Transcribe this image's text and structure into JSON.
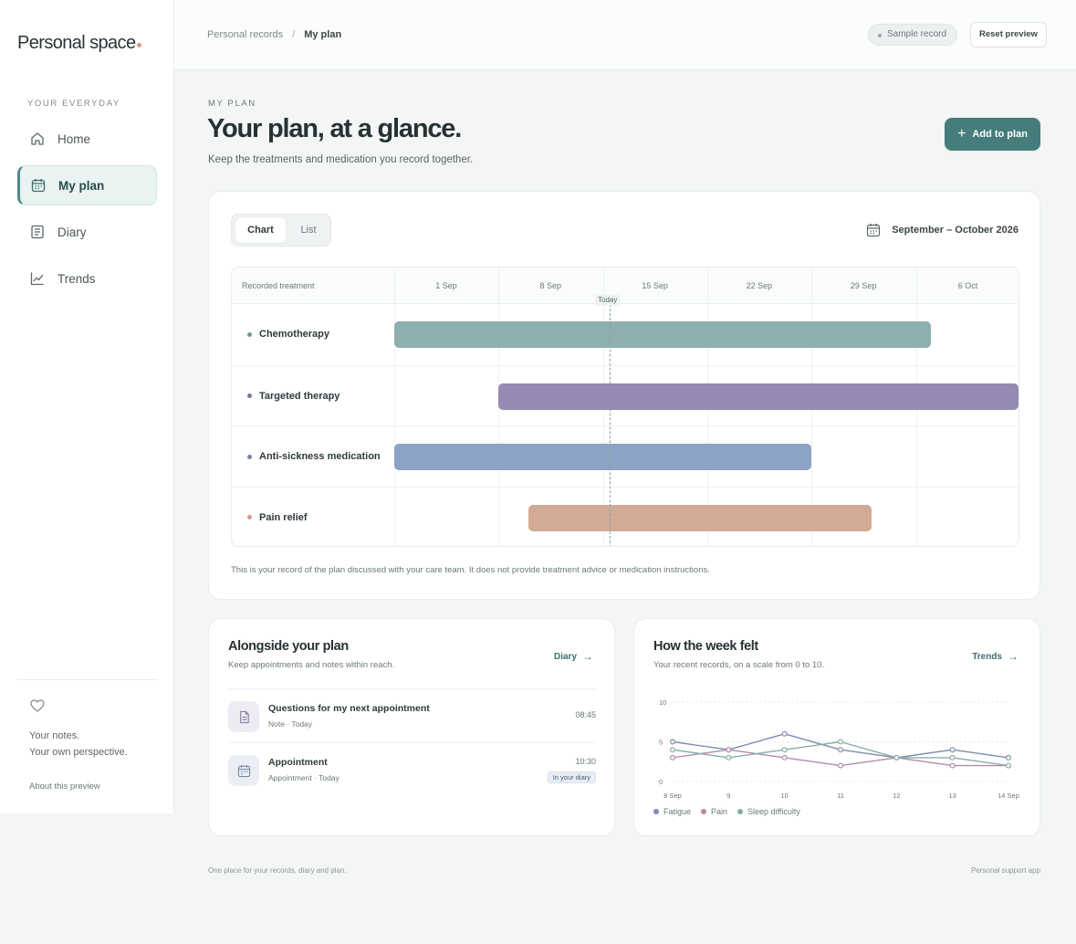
{
  "brand": {
    "name": "Personal space"
  },
  "sidebar": {
    "section_label": "YOUR EVERYDAY",
    "items": [
      {
        "label": "Home",
        "icon": "home-icon",
        "active": false
      },
      {
        "label": "My plan",
        "icon": "calendar-icon",
        "active": true
      },
      {
        "label": "Diary",
        "icon": "notebook-icon",
        "active": false
      },
      {
        "label": "Trends",
        "icon": "chart-line-icon",
        "active": false
      }
    ],
    "notes_line1": "Your notes.",
    "notes_line2": "Your own perspective.",
    "about_link": "About this preview"
  },
  "topbar": {
    "breadcrumb_root": "Personal records",
    "breadcrumb_sep": "/",
    "breadcrumb_current": "My plan",
    "sample_badge": "Sample record",
    "reset_button": "Reset preview"
  },
  "header": {
    "eyebrow": "MY PLAN",
    "title": "Your plan, at a glance.",
    "subtitle": "Keep the treatments and medication you record together.",
    "add_button": "Add to plan"
  },
  "plan": {
    "view_options": [
      "Chart",
      "List"
    ],
    "selected_view": "Chart",
    "date_range": "September – October 2026",
    "column_header": "Recorded treatment",
    "today_label": "Today",
    "disclaimer": "This is your record of the plan discussed with your care team. It does not provide treatment advice or medication instructions."
  },
  "chart_data": [
    {
      "type": "gantt",
      "ticks": [
        "1 Sep",
        "8 Sep",
        "15 Sep",
        "22 Sep",
        "29 Sep",
        "6 Oct"
      ],
      "axis_start_day": 1,
      "axis_end_day": 43,
      "today_day": 15.5,
      "rows": [
        {
          "name": "Chemotherapy",
          "start_day": 1,
          "end_day": 37,
          "color": "#8faeb0",
          "dot": "#6f9b93"
        },
        {
          "name": "Targeted therapy",
          "start_day": 8,
          "end_day": 43,
          "color": "#9689b3",
          "dot": "#7e749c"
        },
        {
          "name": "Anti-sickness medication",
          "start_day": 1,
          "end_day": 29,
          "color": "#8ba3c4",
          "dot": "#7588a6"
        },
        {
          "name": "Pain relief",
          "start_day": 10,
          "end_day": 33,
          "color": "#d2aa96",
          "dot": "#d39b83"
        }
      ]
    },
    {
      "type": "line",
      "x": [
        "8 Sep",
        "9",
        "10",
        "11",
        "12",
        "13",
        "14 Sep"
      ],
      "ylim": [
        0,
        10
      ],
      "yticks": [
        0,
        5,
        10
      ],
      "series": [
        {
          "name": "Fatigue",
          "color": "#7e8db0",
          "values": [
            5,
            4,
            6,
            4,
            3,
            4,
            3
          ]
        },
        {
          "name": "Pain",
          "color": "#b48aa8",
          "values": [
            3,
            4,
            3,
            2,
            3,
            2,
            2
          ]
        },
        {
          "name": "Sleep difficulty",
          "color": "#86ada6",
          "values": [
            4,
            3,
            4,
            5,
            3,
            3,
            2
          ]
        }
      ]
    }
  ],
  "alongside": {
    "title": "Alongside your plan",
    "subtitle": "Keep appointments and notes within reach.",
    "link": "Diary",
    "items": [
      {
        "title": "Questions for my next appointment",
        "meta": "Note · Today",
        "time": "08:45",
        "badge": "",
        "icon": "document-icon"
      },
      {
        "title": "Appointment",
        "meta": "Appointment · Today",
        "time": "10:30",
        "badge": "In your diary",
        "icon": "calendar-icon"
      }
    ]
  },
  "week": {
    "title": "How the week felt",
    "subtitle": "Your recent records, on a scale from 0 to 10.",
    "link": "Trends"
  },
  "footer": {
    "left": "One place for your records, diary and plan.",
    "right": "Personal support app"
  }
}
